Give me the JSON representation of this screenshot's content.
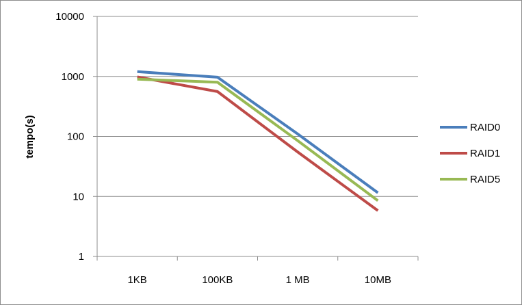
{
  "chart_data": {
    "type": "line",
    "title": "",
    "xlabel": "",
    "ylabel": "tempo(s)",
    "yscale": "log",
    "ylim": [
      1,
      10000
    ],
    "yticks": [
      "1",
      "10",
      "100",
      "1000",
      "10000"
    ],
    "categories": [
      "1KB",
      "100KB",
      "1 MB",
      "10MB"
    ],
    "grid": "horizontal",
    "legend_position": "right",
    "series": [
      {
        "name": "RAID0",
        "color": "#4a7ebb",
        "values": [
          1200,
          970,
          110,
          11.5
        ]
      },
      {
        "name": "RAID1",
        "color": "#be4b48",
        "values": [
          980,
          560,
          55,
          5.8
        ]
      },
      {
        "name": "RAID5",
        "color": "#98b954",
        "values": [
          900,
          800,
          85,
          8.5
        ]
      }
    ]
  }
}
